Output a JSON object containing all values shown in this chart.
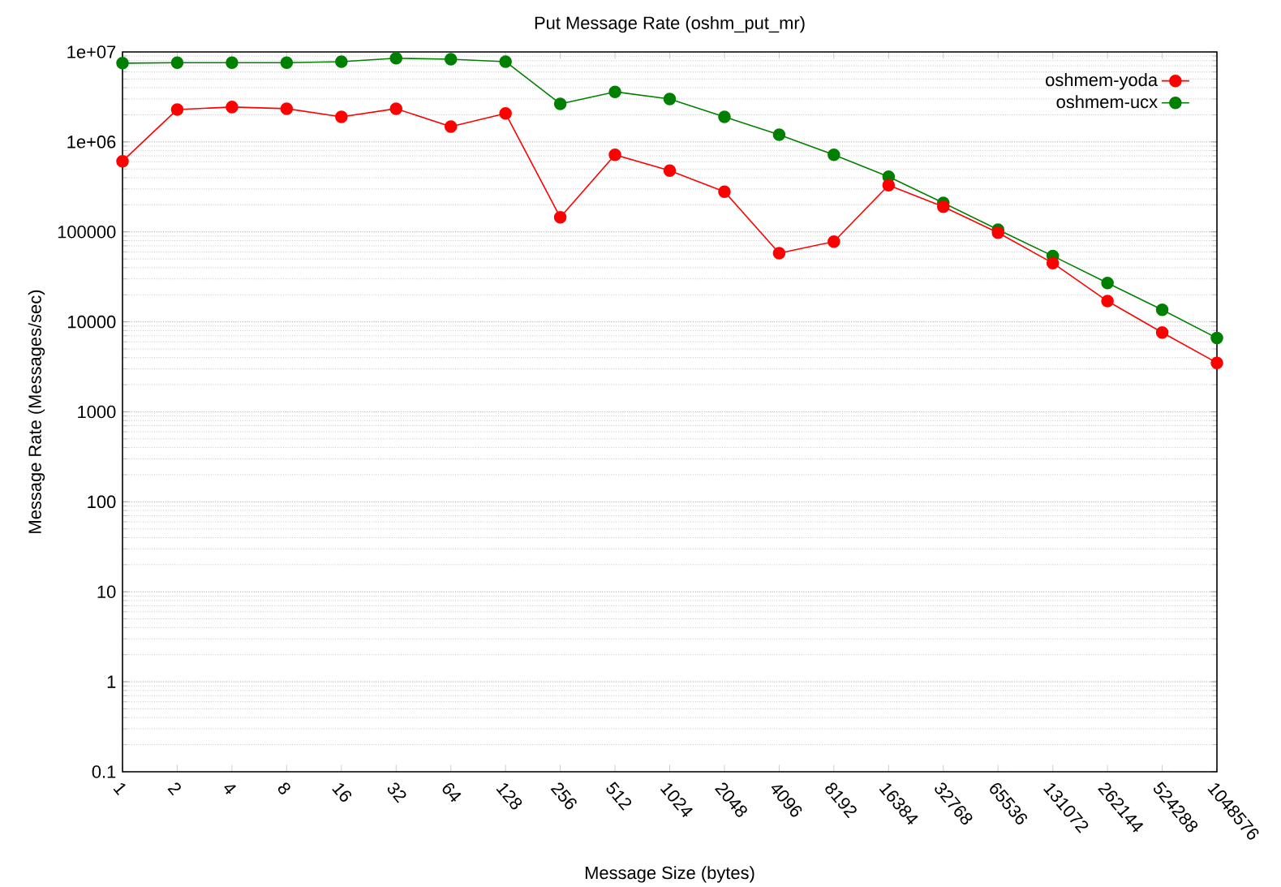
{
  "chart_data": {
    "type": "line",
    "title": "Put Message Rate (oshm_put_mr)",
    "xlabel": "Message Size (bytes)",
    "ylabel": "Message Rate (Messages/sec)",
    "categories": [
      "1",
      "2",
      "4",
      "8",
      "16",
      "32",
      "64",
      "128",
      "256",
      "512",
      "1024",
      "2048",
      "4096",
      "8192",
      "16384",
      "32768",
      "65536",
      "131072",
      "262144",
      "524288",
      "1048576"
    ],
    "series": [
      {
        "name": "oshmem-yoda",
        "color": "#ff0000",
        "values": [
          610000,
          2290000,
          2440000,
          2340000,
          1900000,
          2340000,
          1480000,
          2070000,
          145000,
          720000,
          480000,
          280000,
          58000,
          78000,
          330000,
          190000,
          98000,
          45000,
          17000,
          7600,
          3500
        ]
      },
      {
        "name": "oshmem-ucx",
        "color": "#008000",
        "values": [
          7500000,
          7600000,
          7600000,
          7600000,
          7800000,
          8500000,
          8300000,
          7800000,
          2650000,
          3600000,
          3000000,
          1900000,
          1200000,
          720000,
          410000,
          210000,
          106000,
          54000,
          27000,
          13600,
          6600
        ]
      }
    ],
    "log": "y",
    "ylim": [
      0.1,
      10000000
    ],
    "yticks": [
      0.1,
      1,
      10,
      100,
      1000,
      10000,
      100000,
      {
        "value": 1000000,
        "label": "1e+06"
      },
      {
        "value": 10000000,
        "label": "1e+07"
      }
    ],
    "grid": "y",
    "legend": "top right",
    "marker": "circle",
    "line_style": "solid"
  }
}
